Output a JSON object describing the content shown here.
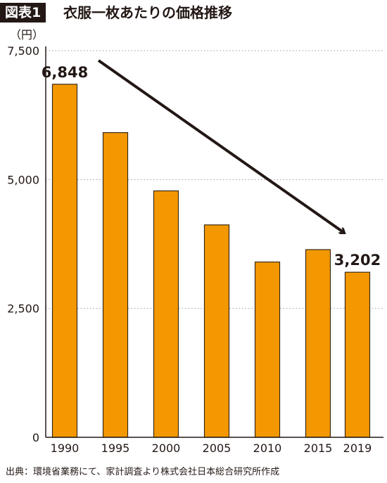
{
  "header": {
    "figure_label": "図表1",
    "title": "衣服一枚あたりの価格推移"
  },
  "footer": {
    "source": "出典：環境省業務にて、家計調査より株式会社日本総合研究所作成"
  },
  "colors": {
    "bar": "#F39800",
    "bar_outline": "#3a2a1a",
    "text": "#231815",
    "grid": "#9a9a9a",
    "arrow": "#231815"
  },
  "chart_data": {
    "type": "bar",
    "title": "衣服一枚あたりの価格推移",
    "y_unit": "（円）",
    "categories": [
      "1990",
      "1995",
      "2000",
      "2005",
      "2010",
      "2015",
      "2019"
    ],
    "values": [
      6848,
      5910,
      4780,
      4120,
      3400,
      3640,
      3202
    ],
    "ylim": [
      0,
      7500
    ],
    "y_ticks": [
      0,
      2500,
      5000,
      7500
    ],
    "y_tick_labels": [
      "0",
      "2,500",
      "5,000",
      "7,500"
    ],
    "data_labels": [
      {
        "category": "1990",
        "text": "6,848"
      },
      {
        "category": "2019",
        "text": "3,202"
      }
    ],
    "grid": "dotted horizontal",
    "legend": "none",
    "annotation": "downward trend arrow from 1990 to 2019"
  }
}
